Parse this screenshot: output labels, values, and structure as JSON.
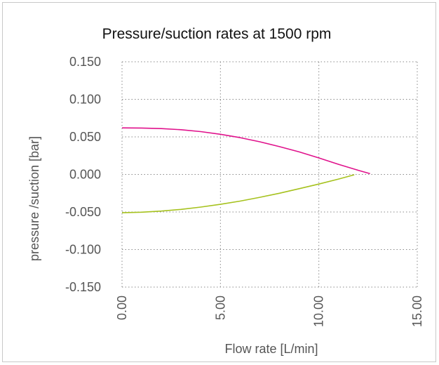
{
  "chart_data": {
    "type": "line",
    "title": "Pressure/suction rates at 1500 rpm",
    "xlabel": "Flow rate [L/min]",
    "ylabel": "pressure /suction [bar]",
    "xlim": [
      0,
      15
    ],
    "ylim": [
      -0.15,
      0.15
    ],
    "x_ticks": [
      "0.00",
      "5.00",
      "10.00",
      "15.00"
    ],
    "y_ticks": [
      "0.150",
      "0.100",
      "0.050",
      "0.000",
      "-0.050",
      "-0.100",
      "-0.150"
    ],
    "grid": true,
    "series": [
      {
        "color": "#e0128c",
        "x": [
          0,
          1,
          2,
          3,
          4,
          5,
          6,
          7,
          8,
          9,
          10,
          11,
          12,
          12.6
        ],
        "y": [
          0.062,
          0.0618,
          0.061,
          0.0595,
          0.057,
          0.0535,
          0.049,
          0.0435,
          0.037,
          0.03,
          0.022,
          0.0135,
          0.0055,
          0.001
        ]
      },
      {
        "color": "#a6c21e",
        "x": [
          0,
          1,
          2,
          3,
          4,
          5,
          6,
          7,
          8,
          9,
          10,
          11,
          11.8
        ],
        "y": [
          -0.051,
          -0.0503,
          -0.0488,
          -0.0465,
          -0.0435,
          -0.0398,
          -0.0355,
          -0.0305,
          -0.025,
          -0.019,
          -0.0128,
          -0.0062,
          -0.0005
        ]
      }
    ]
  }
}
